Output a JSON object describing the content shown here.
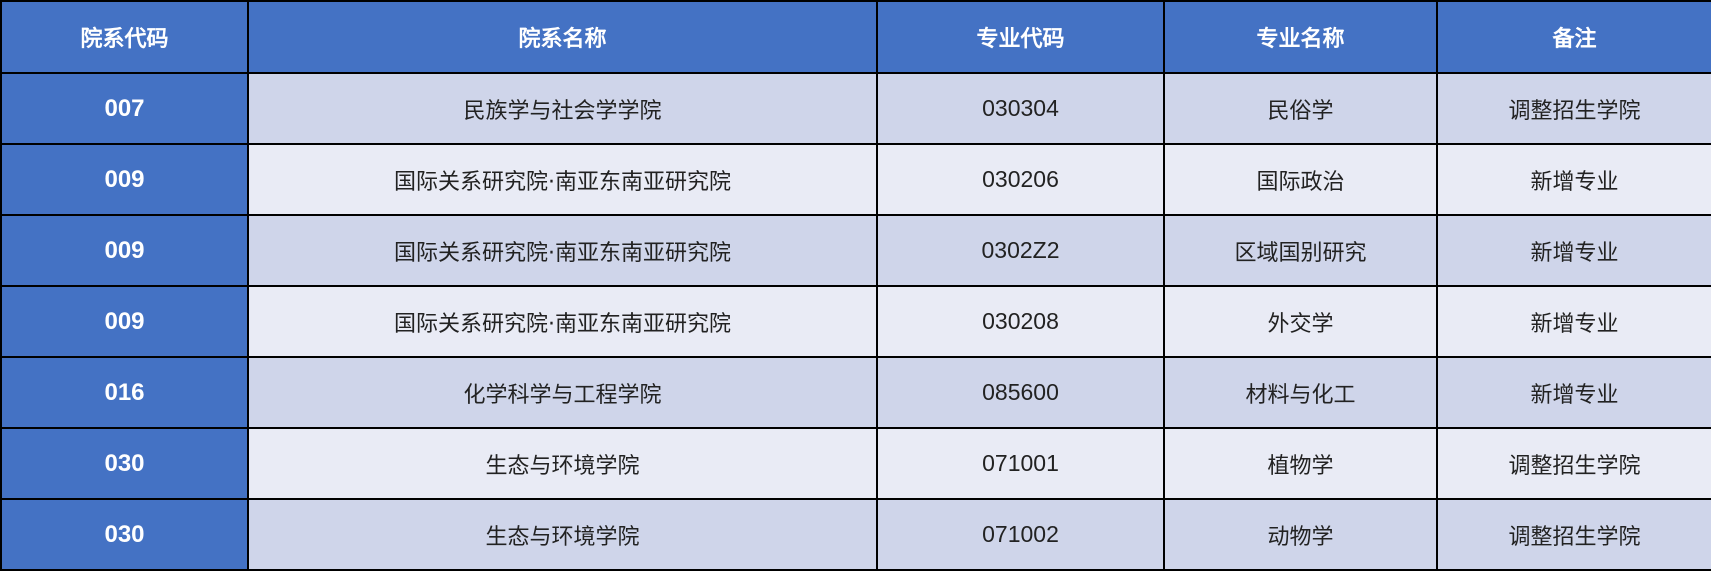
{
  "headers": [
    "院系代码",
    "院系名称",
    "专业代码",
    "专业名称",
    "备注"
  ],
  "rows": [
    [
      "007",
      "民族学与社会学学院",
      "030304",
      "民俗学",
      "调整招生学院"
    ],
    [
      "009",
      "国际关系研究院·南亚东南亚研究院",
      "030206",
      "国际政治",
      "新增专业"
    ],
    [
      "009",
      "国际关系研究院·南亚东南亚研究院",
      "0302Z2",
      "区域国别研究",
      "新增专业"
    ],
    [
      "009",
      "国际关系研究院·南亚东南亚研究院",
      "030208",
      "外交学",
      "新增专业"
    ],
    [
      "016",
      "化学科学与工程学院",
      "085600",
      "材料与化工",
      "新增专业"
    ],
    [
      "030",
      "生态与环境学院",
      "071001",
      "植物学",
      "调整招生学院"
    ],
    [
      "030",
      "生态与环境学院",
      "071002",
      "动物学",
      "调整招生学院"
    ]
  ],
  "colors": {
    "header": "#4472C4",
    "row_odd": "#CFD5EA",
    "row_even": "#E9EBF5",
    "border": "#000000"
  }
}
